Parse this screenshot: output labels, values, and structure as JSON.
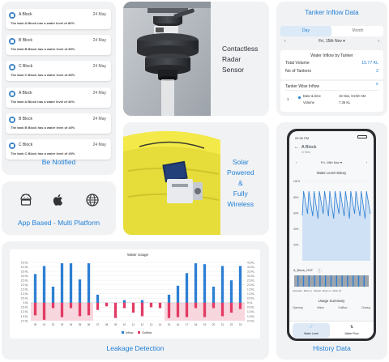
{
  "notifications": {
    "items": [
      {
        "title": "A Block",
        "date": "24 May",
        "message": "The tank A Block has a water level of 80%"
      },
      {
        "title": "B Block",
        "date": "24 May",
        "message": "The tank B Block has a water level of 80%"
      },
      {
        "title": "C Block",
        "date": "24 May",
        "message": "The tank C Block has a water level of 80%"
      },
      {
        "title": "A Block",
        "date": "24 May",
        "message": "The tank A Block has a water level of 40%"
      },
      {
        "title": "B Block",
        "date": "24 May",
        "message": "The tank B Block has a water level of 40%"
      },
      {
        "title": "C Block",
        "date": "24 May",
        "message": "The tank C Block has a water level of 40%"
      }
    ],
    "caption": "Be Notified"
  },
  "sensor": {
    "line1": "Contactless",
    "line2": "Radar",
    "line3": "Sensor"
  },
  "solar": {
    "line1": "Solar",
    "line2": "Powered",
    "line3": "&",
    "line4": "Fully",
    "line5": "Wireless"
  },
  "platform": {
    "caption": "App Based - Multi  Platform",
    "icons": [
      "android-icon",
      "apple-icon",
      "globe-icon"
    ]
  },
  "tanker": {
    "title": "Tanker Inflow Data",
    "tabs": [
      "Day",
      "Month"
    ],
    "date": "Fri, 15th Nov",
    "summary_title": "Water Inflow by Tanker",
    "total_volume_label": "Total Volume",
    "total_volume_value": "15.77 KL",
    "tankers_label": "No of Tankers",
    "tankers_value": "2",
    "wise_title": "Tanker Wise Inflow",
    "row_index": "1",
    "row_label": "Date & time",
    "row_sub": "Volume",
    "row_time": "15 Nov, 04:50 AM",
    "row_volume": "7.35 KL"
  },
  "leakage": {
    "caption": "Leakage Detection",
    "accent_inflow": "#2d7fd3",
    "accent_outflow": "#e23a63",
    "leak_band": "#f9d5de"
  },
  "history": {
    "caption": "History Data",
    "time": "09:30 PM",
    "block": "A Block",
    "sub": "In Tank",
    "date": "Fri, 15th Nov",
    "chart_title": "Water Level History",
    "ylabels": [
      "100%",
      "80%",
      "60%",
      "40%",
      "20%"
    ],
    "pump_label": "A_Block_OHT",
    "legend": [
      "Automatic - Motor on",
      "Manual - Motor on",
      "Motor off"
    ],
    "usage_title": "Usage Summary",
    "usage_cols": [
      "Opening",
      "Inflow",
      "Outflow",
      "Closing"
    ],
    "nav": [
      "Water Level",
      "Water Flow"
    ]
  },
  "chart_data": {
    "type": "bar",
    "title": "Water Usage",
    "categories": [
      "00",
      "01",
      "02",
      "03",
      "04",
      "05",
      "06",
      "07",
      "08",
      "09",
      "10",
      "11",
      "12",
      "13",
      "14",
      "15",
      "16",
      "17",
      "18",
      "19",
      "20",
      "21",
      "22",
      "23"
    ],
    "series": [
      {
        "name": "Inflow",
        "values": [
          3.2,
          4.1,
          1.8,
          4.4,
          4.4,
          2.6,
          4.4,
          0.9,
          0,
          0,
          0.3,
          0,
          0.3,
          0,
          0,
          0.9,
          1.9,
          3.3,
          4.4,
          4.3,
          1.8,
          4.1,
          2.5,
          4.1
        ]
      },
      {
        "name": "Outflow",
        "values": [
          -1.4,
          -1.9,
          -0.6,
          -1.6,
          -0.6,
          -1.5,
          -1.4,
          -0.8,
          -0.4,
          -1.7,
          -0.6,
          -1.1,
          -1.5,
          -0.5,
          -0.6,
          -1.7,
          -1.6,
          -1.6,
          -0.6,
          -1.6,
          -0.6,
          -1.5,
          -1.1,
          -0.7
        ]
      }
    ],
    "leak_ranges": [
      [
        0,
        6
      ],
      [
        15,
        23
      ]
    ],
    "ylim": [
      -2.0,
      4.5
    ],
    "ytick_labels_left": [
      "4.5 KL",
      "4.0 KL",
      "3.5 KL",
      "3.0 KL",
      "2.5 KL",
      "2.0 KL",
      "1.5 KL",
      "1.0 KL",
      "0.5 KL",
      "0 KL",
      "0.5 KL",
      "1.0 KL",
      "1.5 KL",
      "2.0 KL"
    ],
    "ytick_labels_right": [
      "4.5 KL",
      "4.0 KL",
      "3.5 KL",
      "3.0 KL",
      "2.5 KL",
      "2.0 KL",
      "1.5 KL",
      "1.0 KL",
      "0.5 KL",
      "0 KL",
      "0.5 KL",
      "1.0 KL",
      "1.5 KL",
      "2.0 KL"
    ],
    "legend": [
      "Inflow",
      "Outflow"
    ]
  }
}
